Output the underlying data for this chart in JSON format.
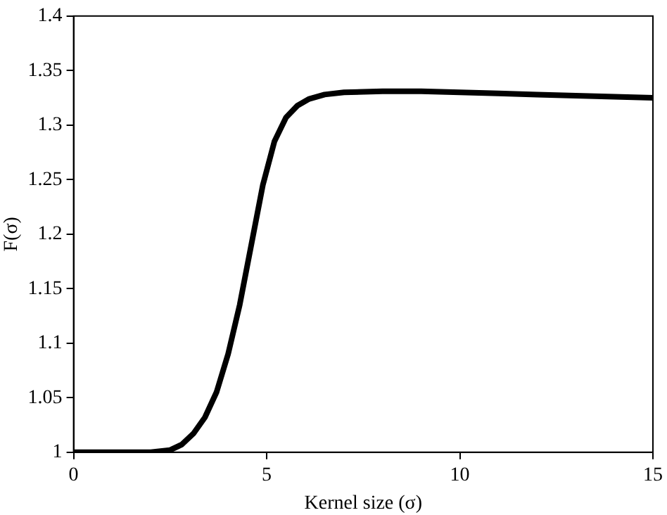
{
  "chart_data": {
    "type": "line",
    "xlabel": "Kernel size (σ)",
    "ylabel": "F(σ)",
    "xlim": [
      0,
      15
    ],
    "xticks": [
      0,
      5,
      10,
      15
    ],
    "ylim": [
      1,
      1.4
    ],
    "yticks": [
      1,
      1.05,
      1.1,
      1.15,
      1.2,
      1.25,
      1.3,
      1.35,
      1.4
    ],
    "grid": false,
    "legend": false,
    "marker": "none",
    "line_style": "solid",
    "series": [
      {
        "color": "#000000",
        "x": [
          0,
          1,
          2,
          2.5,
          2.8,
          3.1,
          3.4,
          3.7,
          4,
          4.3,
          4.6,
          4.9,
          5.2,
          5.5,
          5.8,
          6.1,
          6.5,
          7,
          8,
          9,
          10,
          11,
          12,
          13,
          14,
          15
        ],
        "values": [
          1,
          1,
          1,
          1.002,
          1.007,
          1.017,
          1.032,
          1.055,
          1.09,
          1.135,
          1.19,
          1.245,
          1.285,
          1.307,
          1.318,
          1.324,
          1.328,
          1.33,
          1.331,
          1.331,
          1.33,
          1.329,
          1.328,
          1.327,
          1.326,
          1.325
        ]
      }
    ]
  }
}
